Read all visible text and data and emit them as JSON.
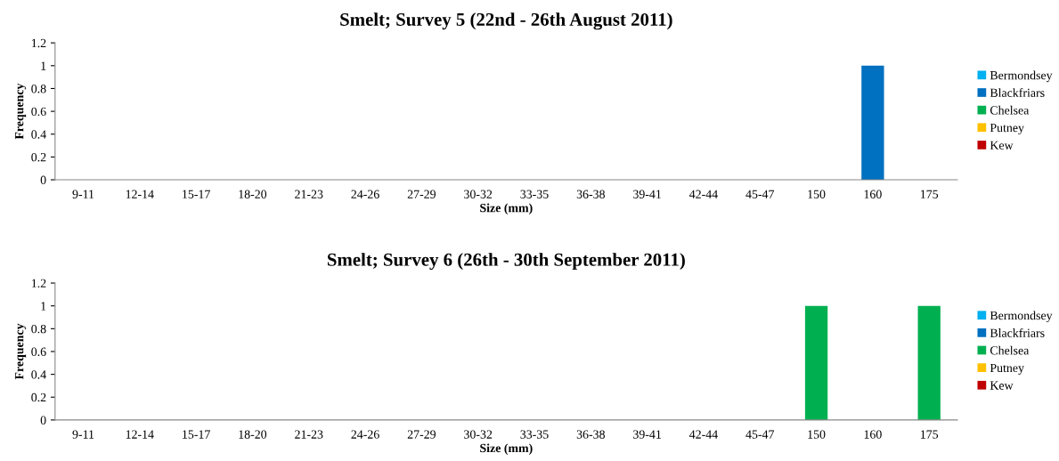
{
  "chart_data": [
    {
      "type": "bar",
      "title": "Smelt; Survey 5 (22nd - 26th August 2011)",
      "xlabel": "Size (mm)",
      "ylabel": "Frequency",
      "categories": [
        "9-11",
        "12-14",
        "15-17",
        "18-20",
        "21-23",
        "24-26",
        "27-29",
        "30-32",
        "33-35",
        "36-38",
        "39-41",
        "42-44",
        "45-47",
        "150",
        "160",
        "175"
      ],
      "series": [
        {
          "name": "Bermondsey",
          "color": "#00b0f0",
          "values": [
            0,
            0,
            0,
            0,
            0,
            0,
            0,
            0,
            0,
            0,
            0,
            0,
            0,
            0,
            0,
            0
          ]
        },
        {
          "name": "Blackfriars",
          "color": "#0070c0",
          "values": [
            0,
            0,
            0,
            0,
            0,
            0,
            0,
            0,
            0,
            0,
            0,
            0,
            0,
            0,
            1,
            0
          ]
        },
        {
          "name": "Chelsea",
          "color": "#00b050",
          "values": [
            0,
            0,
            0,
            0,
            0,
            0,
            0,
            0,
            0,
            0,
            0,
            0,
            0,
            0,
            0,
            0
          ]
        },
        {
          "name": "Putney",
          "color": "#ffc000",
          "values": [
            0,
            0,
            0,
            0,
            0,
            0,
            0,
            0,
            0,
            0,
            0,
            0,
            0,
            0,
            0,
            0
          ]
        },
        {
          "name": "Kew",
          "color": "#c00000",
          "values": [
            0,
            0,
            0,
            0,
            0,
            0,
            0,
            0,
            0,
            0,
            0,
            0,
            0,
            0,
            0,
            0
          ]
        }
      ],
      "ylim": [
        0,
        1.2
      ],
      "yticks": [
        0,
        0.2,
        0.4,
        0.6,
        0.8,
        1,
        1.2
      ],
      "legend": "right"
    },
    {
      "type": "bar",
      "title": "Smelt; Survey 6 (26th - 30th September 2011)",
      "xlabel": "Size (mm)",
      "ylabel": "Frequency",
      "categories": [
        "9-11",
        "12-14",
        "15-17",
        "18-20",
        "21-23",
        "24-26",
        "27-29",
        "30-32",
        "33-35",
        "36-38",
        "39-41",
        "42-44",
        "45-47",
        "150",
        "160",
        "175"
      ],
      "series": [
        {
          "name": "Bermondsey",
          "color": "#00b0f0",
          "values": [
            0,
            0,
            0,
            0,
            0,
            0,
            0,
            0,
            0,
            0,
            0,
            0,
            0,
            0,
            0,
            0
          ]
        },
        {
          "name": "Blackfriars",
          "color": "#0070c0",
          "values": [
            0,
            0,
            0,
            0,
            0,
            0,
            0,
            0,
            0,
            0,
            0,
            0,
            0,
            0,
            0,
            0
          ]
        },
        {
          "name": "Chelsea",
          "color": "#00b050",
          "values": [
            0,
            0,
            0,
            0,
            0,
            0,
            0,
            0,
            0,
            0,
            0,
            0,
            0,
            1,
            0,
            1
          ]
        },
        {
          "name": "Putney",
          "color": "#ffc000",
          "values": [
            0,
            0,
            0,
            0,
            0,
            0,
            0,
            0,
            0,
            0,
            0,
            0,
            0,
            0,
            0,
            0
          ]
        },
        {
          "name": "Kew",
          "color": "#c00000",
          "values": [
            0,
            0,
            0,
            0,
            0,
            0,
            0,
            0,
            0,
            0,
            0,
            0,
            0,
            0,
            0,
            0
          ]
        }
      ],
      "ylim": [
        0,
        1.2
      ],
      "yticks": [
        0,
        0.2,
        0.4,
        0.6,
        0.8,
        1,
        1.2
      ],
      "legend": "right"
    }
  ]
}
